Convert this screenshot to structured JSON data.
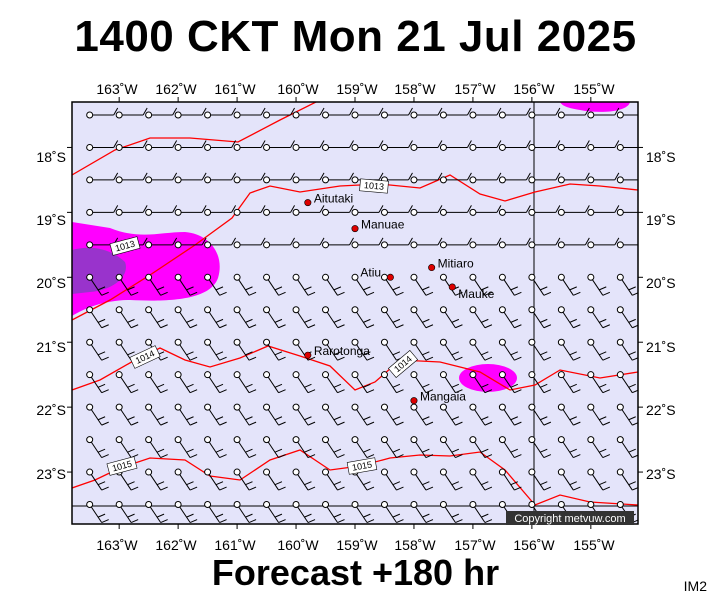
{
  "title": "1400 CKT Mon 21 Jul 2025",
  "footer": "Forecast +180 hr",
  "image_code": "IM2",
  "copyright": "Copyright metvuw.com",
  "lon_labels": [
    "163˚W",
    "162˚W",
    "161˚W",
    "160˚W",
    "159˚W",
    "158˚W",
    "157˚W",
    "156˚W",
    "155˚W"
  ],
  "lat_labels": [
    "18˚S",
    "19˚S",
    "20˚S",
    "21˚S",
    "22˚S",
    "23˚S"
  ],
  "towns": [
    {
      "name": "Aitutaki",
      "lon": -159.8,
      "lat": -18.85
    },
    {
      "name": "Manuae",
      "lon": -159.0,
      "lat": -19.25
    },
    {
      "name": "Atiu",
      "lon": -158.4,
      "lat": -20.0
    },
    {
      "name": "Mitiaro",
      "lon": -157.7,
      "lat": -19.85
    },
    {
      "name": "Mauke",
      "lon": -157.35,
      "lat": -20.15
    },
    {
      "name": "Rarotonga",
      "lon": -159.8,
      "lat": -21.2
    },
    {
      "name": "Mangaia",
      "lon": -158.0,
      "lat": -21.9
    }
  ],
  "isobar_labels": [
    "1013",
    "1013",
    "1014",
    "1014",
    "1015",
    "1015"
  ],
  "colors": {
    "sea": "#e4e4fa",
    "isobar": "#ff0000",
    "rain_light": "#ff00ff",
    "rain_heavy": "#9933cc",
    "town": "#dd0000"
  },
  "map": {
    "lon_min": -163.8,
    "lon_max": -154.2,
    "lat_min": -23.8,
    "lat_max": -17.3,
    "wind_barbs": true,
    "grid_spacing_deg": 0.5
  }
}
